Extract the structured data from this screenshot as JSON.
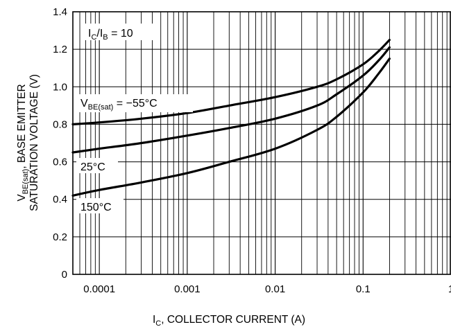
{
  "chart_data": {
    "type": "line",
    "xscale": "log",
    "xlim": [
      5e-05,
      1
    ],
    "ylim": [
      0,
      1.4
    ],
    "grid": true,
    "xticks": [
      {
        "value": 0.0001,
        "label": "0.0001"
      },
      {
        "value": 0.001,
        "label": "0.001"
      },
      {
        "value": 0.01,
        "label": "0.01"
      },
      {
        "value": 0.1,
        "label": "0.1"
      },
      {
        "value": 1,
        "label": "1"
      }
    ],
    "yticks": [
      {
        "value": 0,
        "label": "0"
      },
      {
        "value": 0.2,
        "label": "0.2"
      },
      {
        "value": 0.4,
        "label": "0.4"
      },
      {
        "value": 0.6,
        "label": "0.6"
      },
      {
        "value": 0.8,
        "label": "0.8"
      },
      {
        "value": 1.0,
        "label": "1.0"
      },
      {
        "value": 1.2,
        "label": "1.2"
      },
      {
        "value": 1.4,
        "label": "1.4"
      }
    ],
    "xlabel": {
      "main": "I",
      "sub": "C",
      "rest": ", COLLECTOR CURRENT (A)"
    },
    "ylabel": {
      "line1_main": "V",
      "line1_sub": "BE(sat)",
      "line1_rest": ", BASE EMITTER",
      "line2": "SATURATION VOLTAGE (V)"
    },
    "condition": {
      "a": "I",
      "a_sub": "C",
      "mid": "/I",
      "b_sub": "B",
      "rest": " = 10"
    },
    "series": [
      {
        "name": "-55",
        "x": [
          5e-05,
          0.0001,
          0.0003,
          0.001,
          0.003,
          0.01,
          0.03,
          0.05,
          0.1,
          0.15,
          0.2
        ],
        "y": [
          0.8,
          0.81,
          0.83,
          0.86,
          0.9,
          0.945,
          1.0,
          1.04,
          1.12,
          1.19,
          1.25
        ]
      },
      {
        "name": "25",
        "x": [
          5e-05,
          0.0001,
          0.0003,
          0.001,
          0.003,
          0.01,
          0.03,
          0.05,
          0.1,
          0.15,
          0.2
        ],
        "y": [
          0.65,
          0.67,
          0.7,
          0.74,
          0.78,
          0.83,
          0.9,
          0.96,
          1.06,
          1.14,
          1.21
        ]
      },
      {
        "name": "150",
        "x": [
          5e-05,
          0.0001,
          0.0003,
          0.001,
          0.003,
          0.01,
          0.03,
          0.05,
          0.1,
          0.15,
          0.2
        ],
        "y": [
          0.42,
          0.45,
          0.49,
          0.54,
          0.6,
          0.67,
          0.77,
          0.84,
          0.97,
          1.07,
          1.15
        ]
      }
    ],
    "annotations": [
      {
        "main": "V",
        "sub": "BE(sat)",
        "rest": " = −55°C"
      },
      {
        "text": "25°C"
      },
      {
        "text": "150°C"
      }
    ]
  }
}
